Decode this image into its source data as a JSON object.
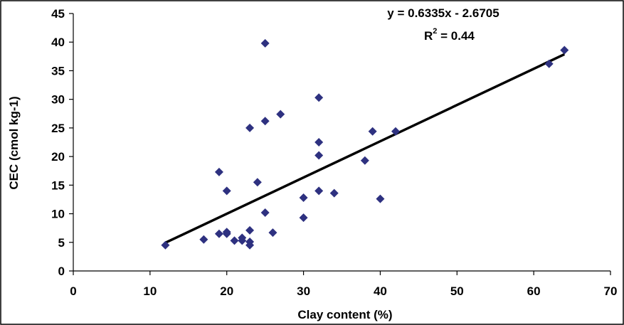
{
  "chart_data": {
    "type": "scatter",
    "xlabel": "Clay content (%)",
    "ylabel": "CEC (cmol kg-1)",
    "xlim": [
      0,
      70
    ],
    "ylim": [
      0,
      45
    ],
    "x_ticks": [
      0,
      10,
      20,
      30,
      40,
      50,
      60,
      70
    ],
    "y_ticks": [
      0,
      5,
      10,
      15,
      20,
      25,
      30,
      35,
      40,
      45
    ],
    "grid": false,
    "legend": "none",
    "marker": "diamond",
    "marker_color": "#2e3180",
    "trendline": {
      "slope": 0.6335,
      "intercept": -2.6705,
      "x_range": [
        12,
        64
      ],
      "color": "#000000",
      "equation_text": "y = 0.6335x - 2.6705",
      "r2_prefix": "R",
      "r2_sup": "2",
      "r2_suffix": " = 0.44"
    },
    "points": [
      {
        "x": 12,
        "y": 4.5
      },
      {
        "x": 17,
        "y": 5.5
      },
      {
        "x": 19,
        "y": 17.3
      },
      {
        "x": 19,
        "y": 6.5
      },
      {
        "x": 20,
        "y": 14.0
      },
      {
        "x": 20,
        "y": 6.8
      },
      {
        "x": 20,
        "y": 6.5
      },
      {
        "x": 21,
        "y": 5.3
      },
      {
        "x": 22,
        "y": 5.8
      },
      {
        "x": 22,
        "y": 5.3
      },
      {
        "x": 23,
        "y": 25.0
      },
      {
        "x": 23,
        "y": 7.1
      },
      {
        "x": 23,
        "y": 5.1
      },
      {
        "x": 23,
        "y": 4.5
      },
      {
        "x": 24,
        "y": 15.5
      },
      {
        "x": 25,
        "y": 39.8
      },
      {
        "x": 25,
        "y": 26.2
      },
      {
        "x": 25,
        "y": 10.2
      },
      {
        "x": 26,
        "y": 6.7
      },
      {
        "x": 27,
        "y": 27.4
      },
      {
        "x": 30,
        "y": 12.8
      },
      {
        "x": 30,
        "y": 9.3
      },
      {
        "x": 32,
        "y": 30.3
      },
      {
        "x": 32,
        "y": 22.5
      },
      {
        "x": 32,
        "y": 20.2
      },
      {
        "x": 32,
        "y": 14.0
      },
      {
        "x": 34,
        "y": 13.6
      },
      {
        "x": 38,
        "y": 19.3
      },
      {
        "x": 39,
        "y": 24.4
      },
      {
        "x": 40,
        "y": 12.6
      },
      {
        "x": 42,
        "y": 24.4
      },
      {
        "x": 62,
        "y": 36.2
      },
      {
        "x": 64,
        "y": 38.6
      }
    ]
  }
}
